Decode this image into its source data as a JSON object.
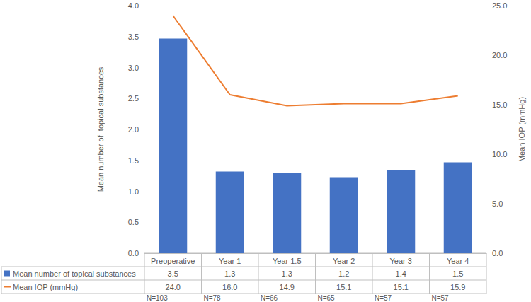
{
  "chart_data": {
    "type": "bar",
    "categories": [
      "Preoperative",
      "Year 1",
      "Year 1.5",
      "Year 2",
      "Year 3",
      "Year 4"
    ],
    "series": [
      {
        "name": "Mean number of topical substances",
        "type": "bar",
        "color": "#4472C4",
        "values": [
          3.47,
          1.32,
          1.3,
          1.23,
          1.35,
          1.47
        ],
        "value_labels": [
          "3.5",
          "1.3",
          "1.3",
          "1.2",
          "1.4",
          "1.5"
        ]
      },
      {
        "name": "Mean IOP (mmHg)",
        "type": "line",
        "color": "#ED7D31",
        "axis": "y2",
        "values": [
          24.0,
          16.0,
          14.9,
          15.1,
          15.1,
          15.9
        ],
        "value_labels": [
          "24.0",
          "16.0",
          "14.9",
          "15.1",
          "15.1",
          "15.9"
        ]
      }
    ],
    "n_labels": [
      "N=103",
      "N=78",
      "N=66",
      "N=65",
      "N=57",
      "N=57"
    ],
    "y_label": "Mean number of  topical substances",
    "y2_label": "Mean IOP (mmHg)",
    "ylim": [
      0,
      4
    ],
    "yticks": [
      {
        "value": 0,
        "label": "0.0"
      },
      {
        "value": 0.5,
        "label": "0.5"
      },
      {
        "value": 1,
        "label": "1.0"
      },
      {
        "value": 1.5,
        "label": "1.5"
      },
      {
        "value": 2,
        "label": "2.0"
      },
      {
        "value": 2.5,
        "label": "2.5"
      },
      {
        "value": 3,
        "label": "3.0"
      },
      {
        "value": 3.5,
        "label": "3.5"
      },
      {
        "value": 4,
        "label": "4.0"
      }
    ],
    "y2lim": [
      0,
      25
    ],
    "y2ticks": [
      {
        "value": 0,
        "label": "0.0"
      },
      {
        "value": 5,
        "label": "5.0"
      },
      {
        "value": 10,
        "label": "10.0"
      },
      {
        "value": 15,
        "label": "15.0"
      },
      {
        "value": 20,
        "label": "20.0"
      },
      {
        "value": 25,
        "label": "25.0"
      }
    ],
    "grid": false
  }
}
